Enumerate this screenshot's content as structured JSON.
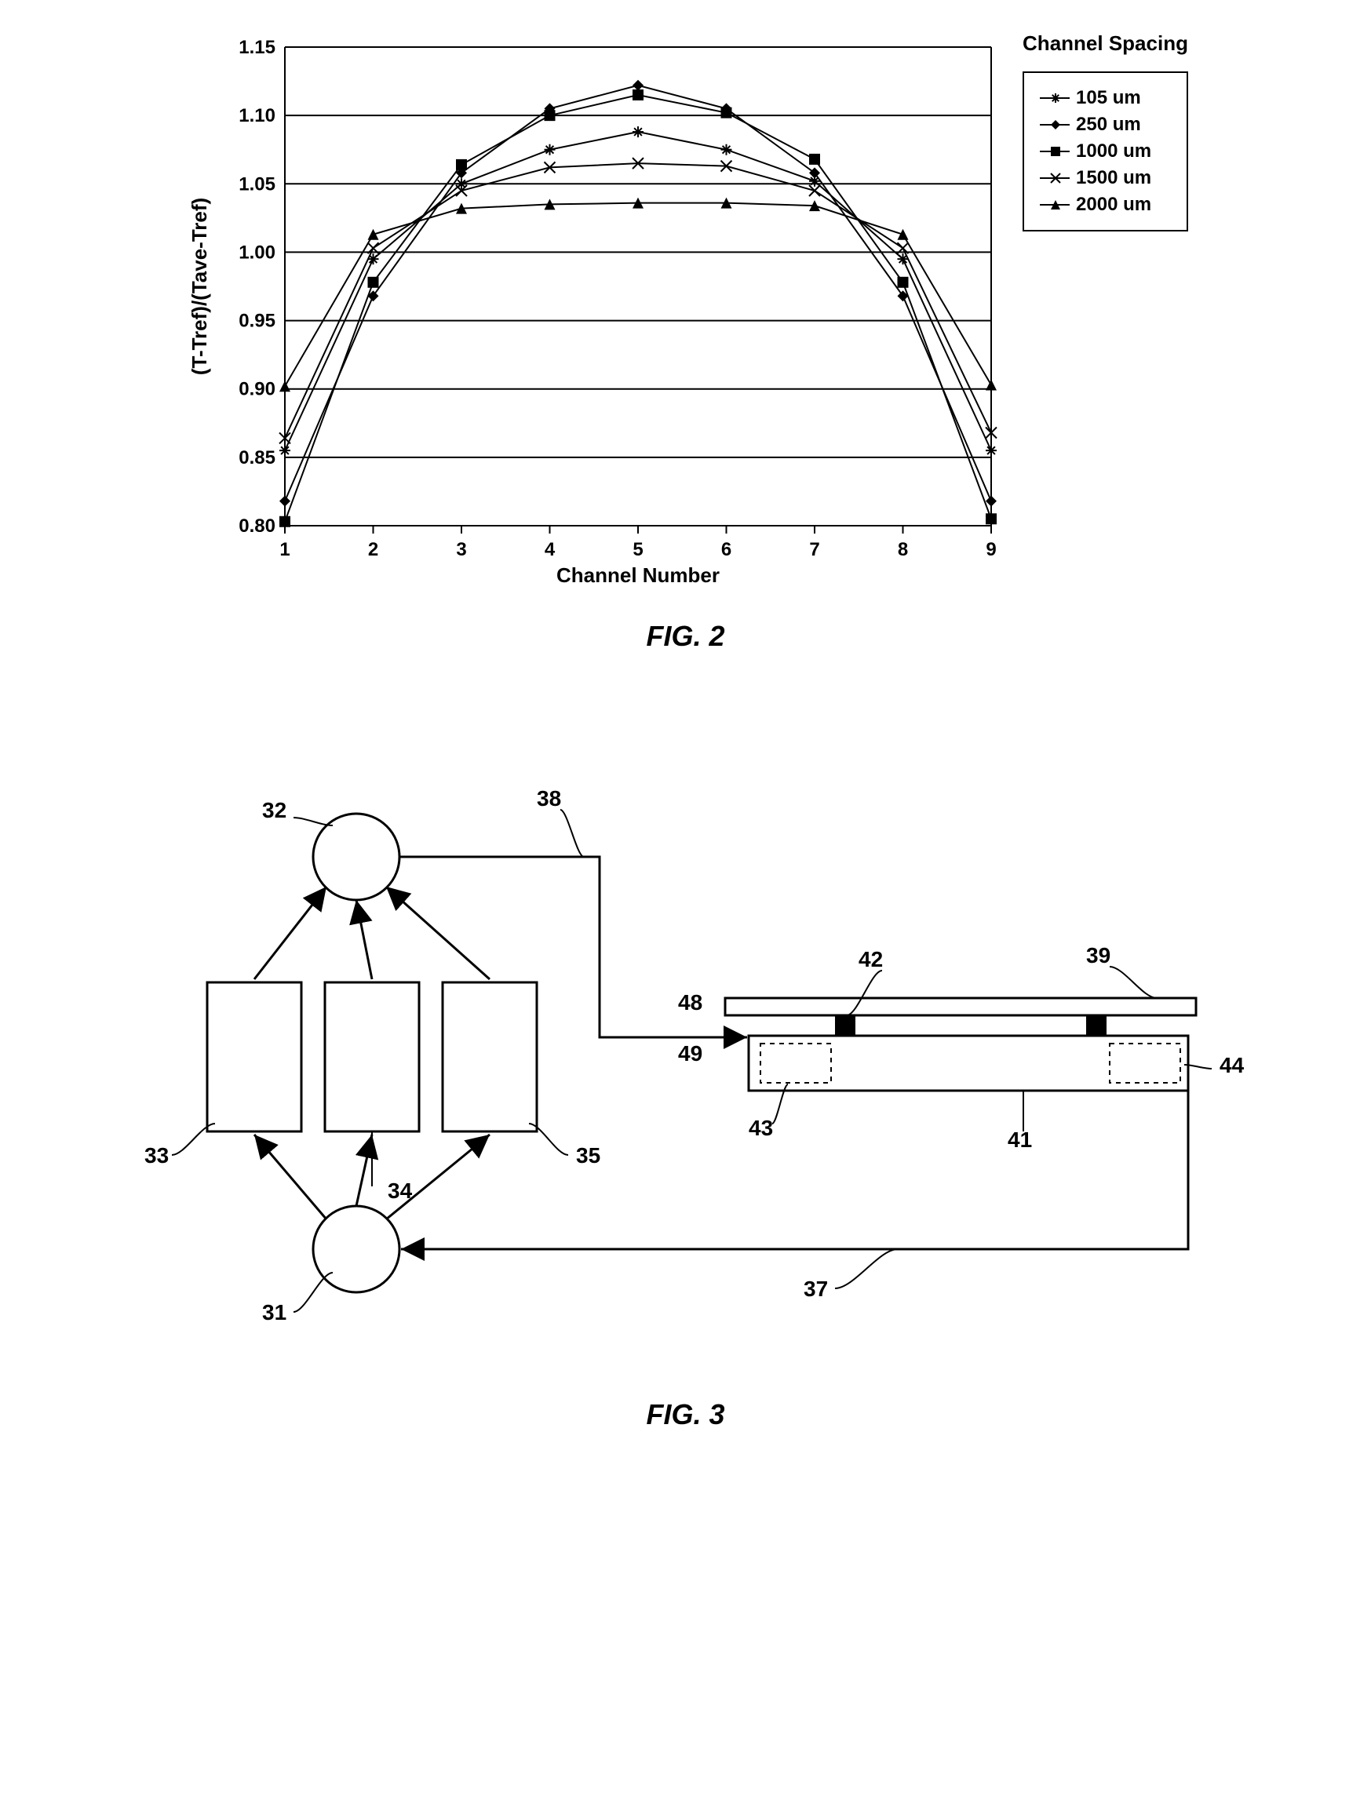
{
  "fig2": {
    "type": "line-scatter",
    "label": "FIG. 2",
    "xlabel": "Channel Number",
    "ylabel": "(T-Tref)/(Tave-Tref)",
    "x_values": [
      1,
      2,
      3,
      4,
      5,
      6,
      7,
      8,
      9
    ],
    "ylim": [
      0.8,
      1.15
    ],
    "ytick_step": 0.05,
    "xlim": [
      1,
      9
    ],
    "xtick_step": 1,
    "background_color": "#ffffff",
    "grid_color": "#000000",
    "axis_fontsize": 24,
    "label_fontsize": 26,
    "legend_title": "Channel Spacing",
    "series": [
      {
        "name": "105 um",
        "marker": "asterisk",
        "values": [
          0.855,
          0.995,
          1.05,
          1.075,
          1.088,
          1.075,
          1.052,
          0.995,
          0.855
        ]
      },
      {
        "name": "250 um",
        "marker": "diamond",
        "values": [
          0.818,
          0.968,
          1.058,
          1.105,
          1.122,
          1.105,
          1.058,
          0.968,
          0.818
        ]
      },
      {
        "name": "1000 um",
        "marker": "square",
        "values": [
          0.803,
          0.978,
          1.064,
          1.1,
          1.115,
          1.102,
          1.068,
          0.978,
          0.805
        ]
      },
      {
        "name": "1500 um",
        "marker": "x",
        "values": [
          0.864,
          1.003,
          1.045,
          1.062,
          1.065,
          1.063,
          1.045,
          1.003,
          0.868
        ]
      },
      {
        "name": "2000 um",
        "marker": "triangle",
        "values": [
          0.902,
          1.013,
          1.032,
          1.035,
          1.036,
          1.036,
          1.034,
          1.013,
          0.903
        ]
      }
    ],
    "line_color": "#000000",
    "line_width": 2,
    "marker_size": 7
  },
  "fig3": {
    "type": "block-diagram",
    "label": "FIG. 3",
    "nodes": {
      "31": {
        "shape": "circle",
        "label": "31"
      },
      "32": {
        "shape": "circle",
        "label": "32"
      },
      "33": {
        "shape": "rect",
        "label": "33"
      },
      "34": {
        "shape": "rect",
        "label": "34"
      },
      "35": {
        "shape": "rect",
        "label": "35"
      },
      "37": {
        "shape": "leader",
        "label": "37"
      },
      "38": {
        "shape": "leader",
        "label": "38"
      },
      "39": {
        "shape": "leader",
        "label": "39"
      },
      "41": {
        "shape": "leader",
        "label": "41"
      },
      "42": {
        "shape": "leader",
        "label": "42"
      },
      "43": {
        "shape": "leader",
        "label": "43"
      },
      "44": {
        "shape": "leader",
        "label": "44"
      },
      "48": {
        "shape": "leader",
        "label": "48"
      },
      "49": {
        "shape": "leader",
        "label": "49"
      }
    },
    "line_color": "#000000",
    "line_width": 3,
    "label_fontsize": 28
  }
}
